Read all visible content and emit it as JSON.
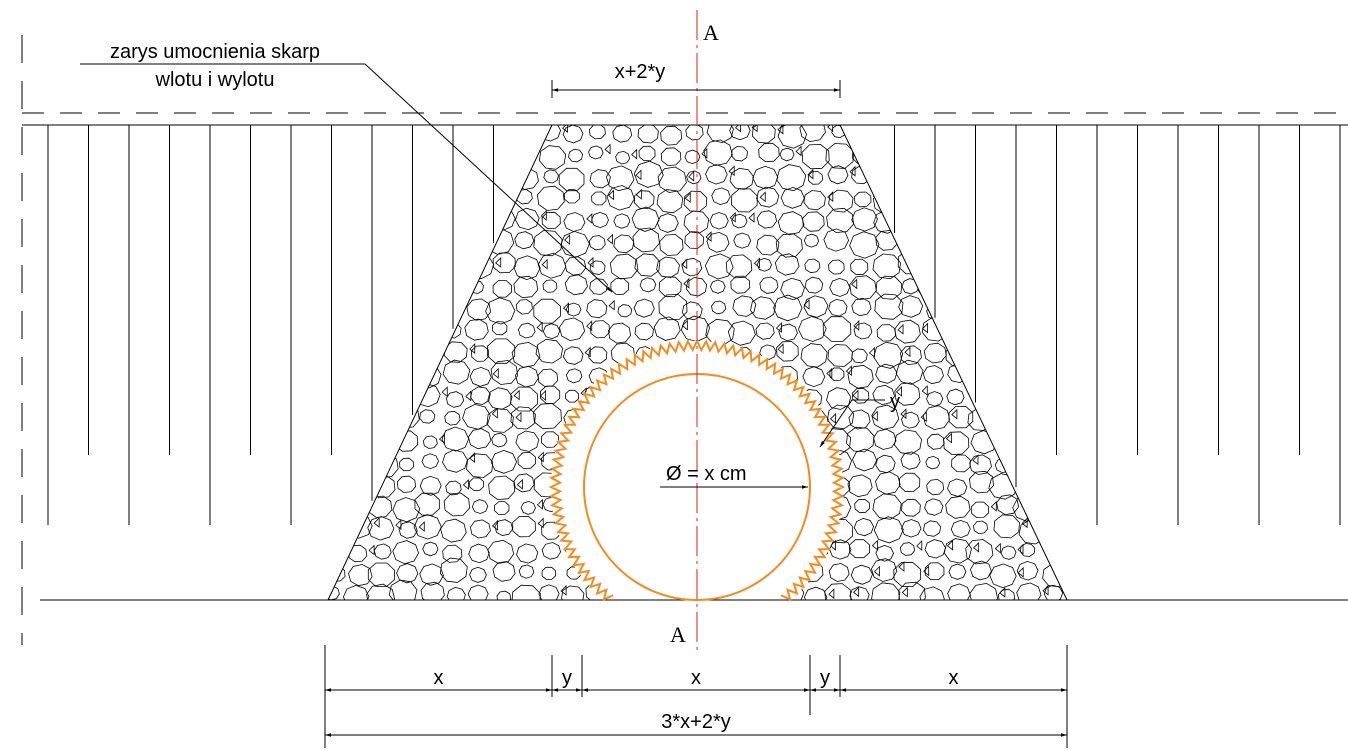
{
  "section_marks": {
    "top": "A",
    "bottom": "A"
  },
  "callout": {
    "line1": "zarys umocnienia skarp",
    "line2": "wlotu i wylotu"
  },
  "top_dimension": "x+2*y",
  "thickness_label": "y",
  "diameter_label": "Ø = x cm",
  "bottom_dimensions": {
    "segments": [
      "x",
      "y",
      "x",
      "y",
      "x"
    ],
    "total": "3*x+2*y"
  }
}
